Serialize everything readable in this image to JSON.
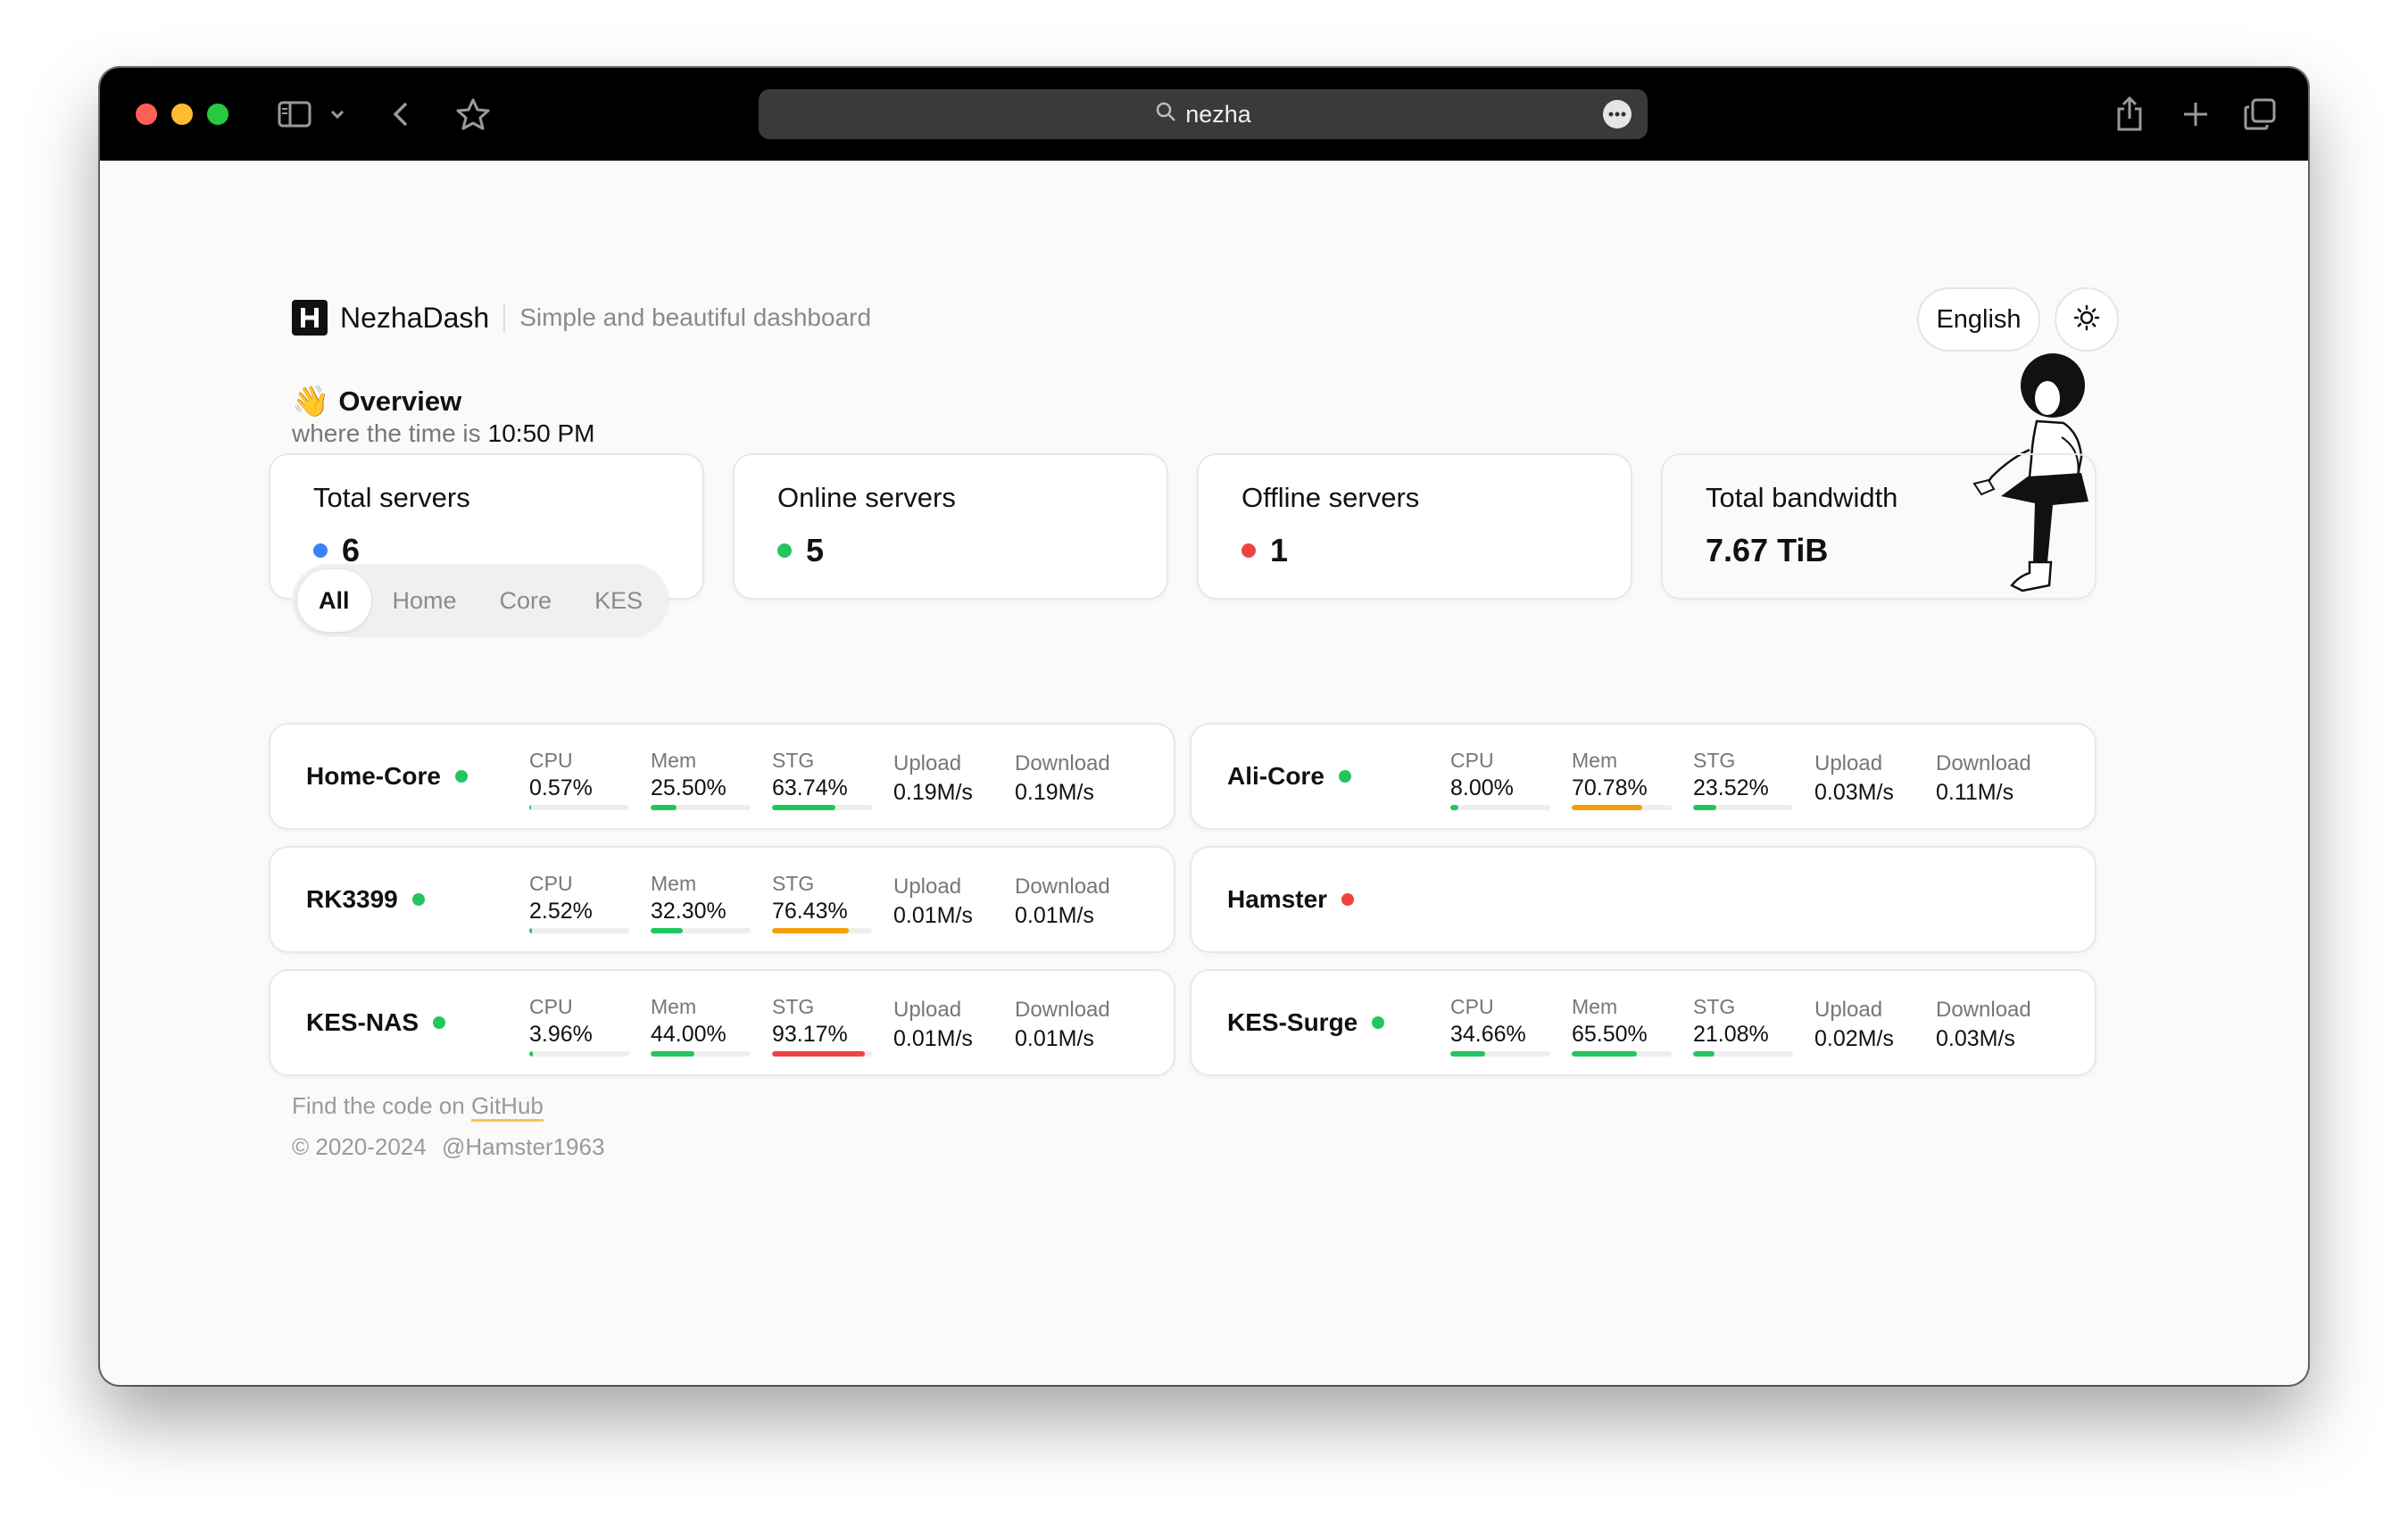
{
  "browser": {
    "url": "nezha"
  },
  "header": {
    "brand_name": "NezhaDash",
    "tagline": "Simple and beautiful dashboard",
    "language": "English"
  },
  "overview": {
    "emoji": "👋",
    "title": "Overview",
    "time_prefix": "where the time is",
    "time": "10:50 PM"
  },
  "stats": [
    {
      "label": "Total servers",
      "value": "6",
      "dot_color": "#3b82f6"
    },
    {
      "label": "Online servers",
      "value": "5",
      "dot_color": "#22c55e"
    },
    {
      "label": "Offline servers",
      "value": "1",
      "dot_color": "#ef4444"
    },
    {
      "label": "Total bandwidth",
      "value": "7.67 TiB"
    }
  ],
  "tabs": [
    {
      "label": "All",
      "active": true
    },
    {
      "label": "Home"
    },
    {
      "label": "Core"
    },
    {
      "label": "KES"
    }
  ],
  "servers": [
    {
      "name": "Home-Core",
      "online": true,
      "cpu": {
        "label": "CPU",
        "value": "0.57%",
        "pct": 0.57
      },
      "mem": {
        "label": "Mem",
        "value": "25.50%",
        "pct": 25.5
      },
      "stg": {
        "label": "STG",
        "value": "63.74%",
        "pct": 63.74
      },
      "upload": {
        "label": "Upload",
        "value": "0.19M/s"
      },
      "download": {
        "label": "Download",
        "value": "0.19M/s"
      }
    },
    {
      "name": "Ali-Core",
      "online": true,
      "cpu": {
        "label": "CPU",
        "value": "8.00%",
        "pct": 8.0
      },
      "mem": {
        "label": "Mem",
        "value": "70.78%",
        "pct": 70.78
      },
      "stg": {
        "label": "STG",
        "value": "23.52%",
        "pct": 23.52
      },
      "upload": {
        "label": "Upload",
        "value": "0.03M/s"
      },
      "download": {
        "label": "Download",
        "value": "0.11M/s"
      }
    },
    {
      "name": "RK3399",
      "online": true,
      "cpu": {
        "label": "CPU",
        "value": "2.52%",
        "pct": 2.52
      },
      "mem": {
        "label": "Mem",
        "value": "32.30%",
        "pct": 32.3
      },
      "stg": {
        "label": "STG",
        "value": "76.43%",
        "pct": 76.43
      },
      "upload": {
        "label": "Upload",
        "value": "0.01M/s"
      },
      "download": {
        "label": "Download",
        "value": "0.01M/s"
      }
    },
    {
      "name": "Hamster",
      "online": false
    },
    {
      "name": "KES-NAS",
      "online": true,
      "cpu": {
        "label": "CPU",
        "value": "3.96%",
        "pct": 3.96
      },
      "mem": {
        "label": "Mem",
        "value": "44.00%",
        "pct": 44.0
      },
      "stg": {
        "label": "STG",
        "value": "93.17%",
        "pct": 93.17
      },
      "upload": {
        "label": "Upload",
        "value": "0.01M/s"
      },
      "download": {
        "label": "Download",
        "value": "0.01M/s"
      }
    },
    {
      "name": "KES-Surge",
      "online": true,
      "cpu": {
        "label": "CPU",
        "value": "34.66%",
        "pct": 34.66
      },
      "mem": {
        "label": "Mem",
        "value": "65.50%",
        "pct": 65.5
      },
      "stg": {
        "label": "STG",
        "value": "21.08%",
        "pct": 21.08
      },
      "upload": {
        "label": "Upload",
        "value": "0.02M/s"
      },
      "download": {
        "label": "Download",
        "value": "0.03M/s"
      }
    }
  ],
  "colors": {
    "online": "#22c55e",
    "offline": "#ef4444",
    "bar_normal": "#22c55e",
    "bar_warn": "#f59e0b",
    "bar_danger": "#ef4444"
  },
  "footer": {
    "code_prefix": "Find the code on",
    "code_link": "GitHub",
    "copyright": "© 2020-2024",
    "author": "@Hamster1963"
  }
}
